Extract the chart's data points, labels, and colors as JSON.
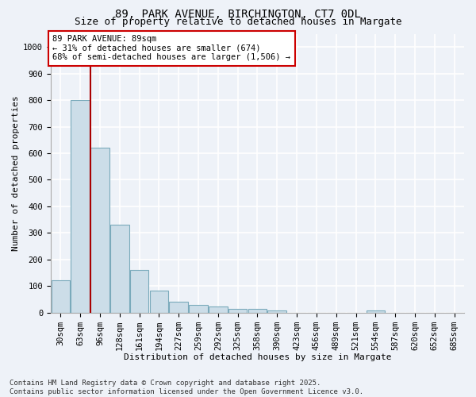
{
  "title1": "89, PARK AVENUE, BIRCHINGTON, CT7 0DL",
  "title2": "Size of property relative to detached houses in Margate",
  "xlabel": "Distribution of detached houses by size in Margate",
  "ylabel": "Number of detached properties",
  "categories": [
    "30sqm",
    "63sqm",
    "96sqm",
    "128sqm",
    "161sqm",
    "194sqm",
    "227sqm",
    "259sqm",
    "292sqm",
    "325sqm",
    "358sqm",
    "390sqm",
    "423sqm",
    "456sqm",
    "489sqm",
    "521sqm",
    "554sqm",
    "587sqm",
    "620sqm",
    "652sqm",
    "685sqm"
  ],
  "values": [
    122,
    800,
    620,
    330,
    160,
    82,
    40,
    28,
    22,
    15,
    15,
    8,
    0,
    0,
    0,
    0,
    8,
    0,
    0,
    0,
    0
  ],
  "bar_color": "#ccdde8",
  "bar_edge_color": "#7aaabb",
  "vline_x_index": 1.5,
  "vline_color": "#aa0000",
  "annotation_text": "89 PARK AVENUE: 89sqm\n← 31% of detached houses are smaller (674)\n68% of semi-detached houses are larger (1,506) →",
  "annotation_edge_color": "#cc0000",
  "ylim": [
    0,
    1050
  ],
  "yticks": [
    0,
    100,
    200,
    300,
    400,
    500,
    600,
    700,
    800,
    900,
    1000
  ],
  "footer1": "Contains HM Land Registry data © Crown copyright and database right 2025.",
  "footer2": "Contains public sector information licensed under the Open Government Licence v3.0.",
  "bg_color": "#eef2f8",
  "plot_bg_color": "#eef2f8",
  "grid_color": "#ffffff",
  "title_fontsize": 10,
  "subtitle_fontsize": 9,
  "axis_label_fontsize": 8,
  "tick_fontsize": 7.5,
  "annotation_fontsize": 7.5,
  "footer_fontsize": 6.5
}
